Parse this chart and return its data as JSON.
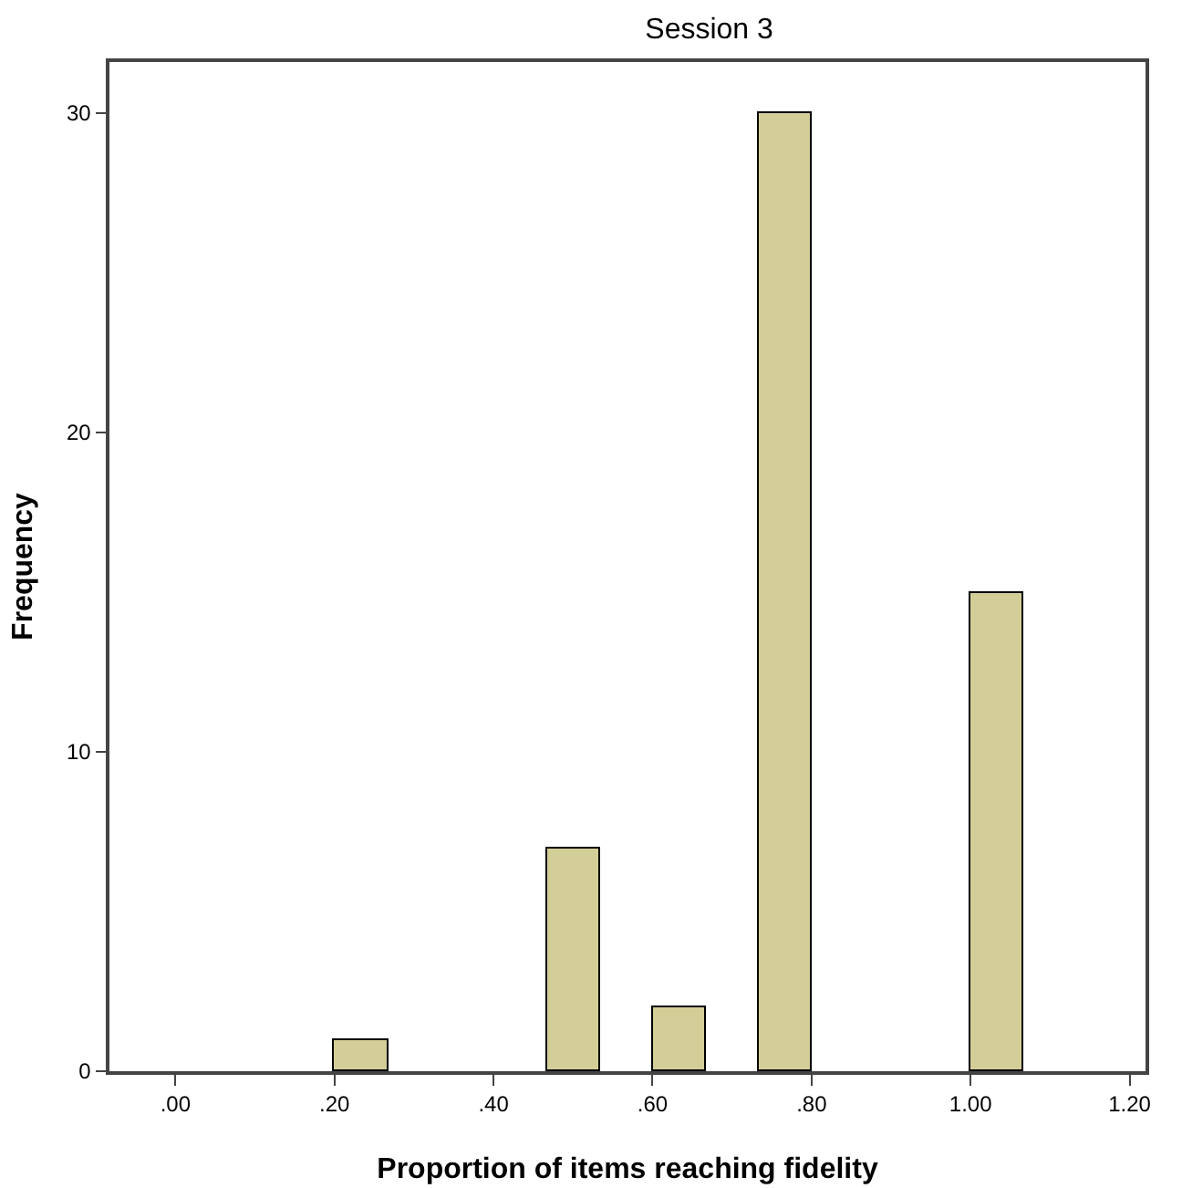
{
  "chart_data": {
    "type": "histogram",
    "title": "Session 3",
    "xlabel": "Proportion of items reaching fidelity",
    "ylabel": "Frequency",
    "bins": [
      0.2,
      0.267,
      0.467,
      0.533,
      0.6,
      0.667,
      0.733,
      0.8,
      1.0,
      1.067
    ],
    "values": [
      1,
      0,
      7,
      0,
      2,
      0,
      30,
      0,
      15
    ],
    "color": "#d3ce97",
    "xlim": [
      -0.083,
      1.22
    ],
    "ylim": [
      0,
      31.6
    ],
    "xticks": [
      {
        "value": 0,
        "label": ".00"
      },
      {
        "value": 0.2,
        "label": ".20"
      },
      {
        "value": 0.4,
        "label": ".40"
      },
      {
        "value": 0.6,
        "label": ".60"
      },
      {
        "value": 0.8,
        "label": ".80"
      },
      {
        "value": 1.0,
        "label": "1.00"
      },
      {
        "value": 1.2,
        "label": "1.20"
      }
    ],
    "yticks": [
      0,
      10,
      20,
      30
    ],
    "grid": false
  }
}
